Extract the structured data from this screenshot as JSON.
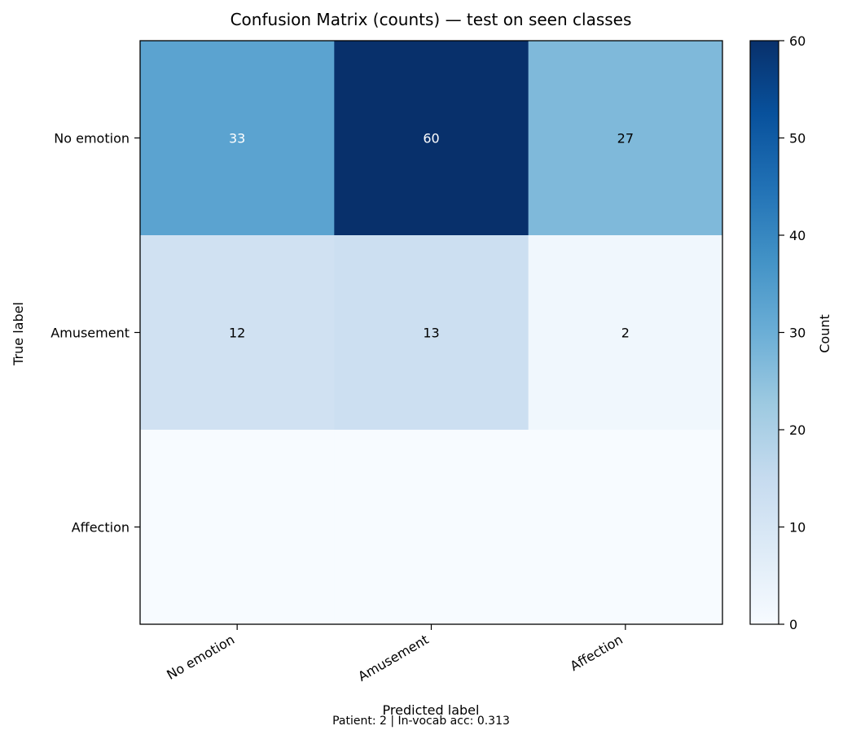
{
  "chart_data": {
    "type": "heatmap",
    "title": "Confusion Matrix (counts) — test on seen classes",
    "xlabel": "Predicted label",
    "ylabel": "True label",
    "x_categories": [
      "No emotion",
      "Amusement",
      "Affection"
    ],
    "y_categories": [
      "No emotion",
      "Amusement",
      "Affection"
    ],
    "values": [
      [
        33,
        60,
        27
      ],
      [
        12,
        13,
        2
      ],
      [
        0,
        0,
        0
      ]
    ],
    "cell_labels": [
      [
        "33",
        "60",
        "27"
      ],
      [
        "12",
        "13",
        "2"
      ],
      [
        "",
        "",
        ""
      ]
    ],
    "colormap": "Blues",
    "vmin": 0,
    "vmax": 60,
    "colorbar": {
      "label": "Count",
      "ticks": [
        0,
        10,
        20,
        30,
        40,
        50,
        60
      ],
      "tick_labels": [
        "0",
        "10",
        "20",
        "30",
        "40",
        "50",
        "60"
      ]
    },
    "footer": "Patient: 2 | In-vocab acc: 0.313",
    "grid": false
  }
}
